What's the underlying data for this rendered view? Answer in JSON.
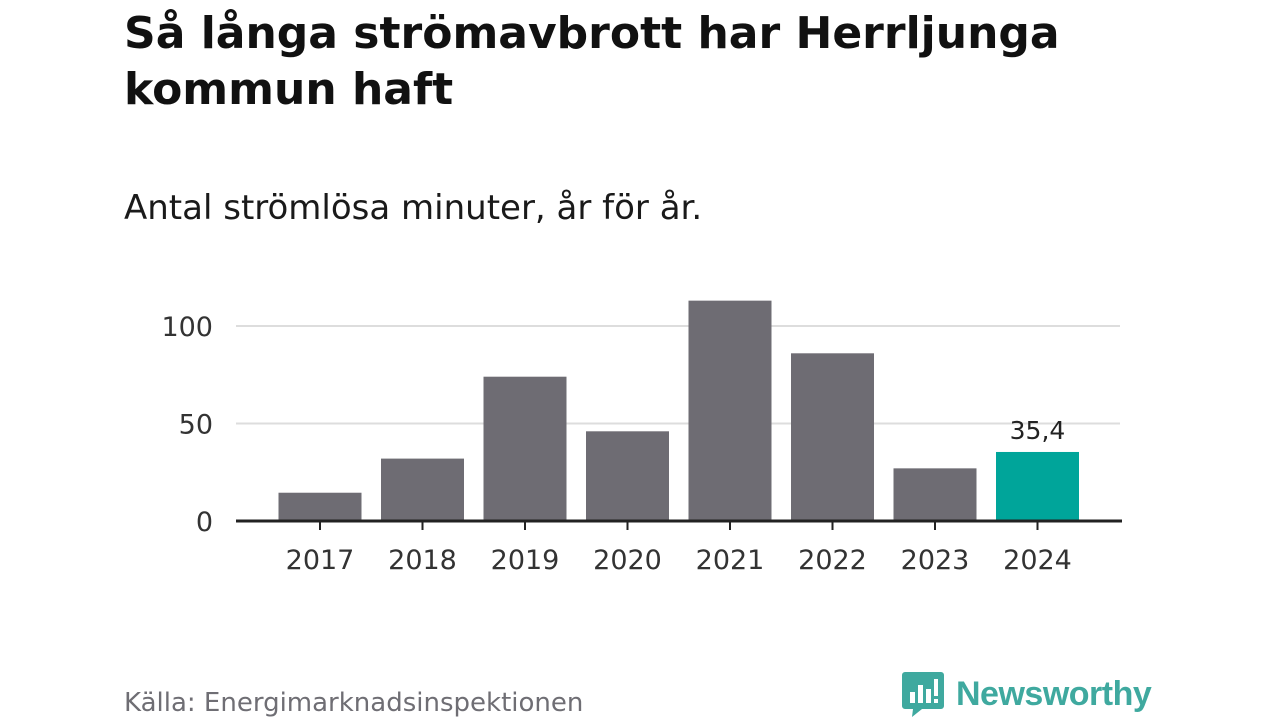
{
  "title": "Så långa strömavbrott har Herrljunga kommun haft",
  "subtitle": "Antal strömlösa minuter, år för år.",
  "source": "Källa: Energimarknadsinspektionen",
  "brand": {
    "name": "Newsworthy",
    "icon": "newsworthy-logo-icon",
    "color": "#3fa99f"
  },
  "colors": {
    "bar": "#6e6c73",
    "highlight": "#00a59a",
    "grid": "#dddddd",
    "axis": "#222222"
  },
  "chart_data": {
    "type": "bar",
    "categories": [
      "2017",
      "2018",
      "2019",
      "2020",
      "2021",
      "2022",
      "2023",
      "2024"
    ],
    "values": [
      14.5,
      32,
      74,
      46,
      113,
      86,
      27,
      35.4
    ],
    "highlight_index": 7,
    "data_labels": [
      {
        "index": 7,
        "text": "35,4"
      }
    ],
    "yticks": [
      0,
      50,
      100
    ],
    "ylim": [
      0,
      118
    ],
    "grid": true,
    "xlabel": "",
    "ylabel": ""
  }
}
